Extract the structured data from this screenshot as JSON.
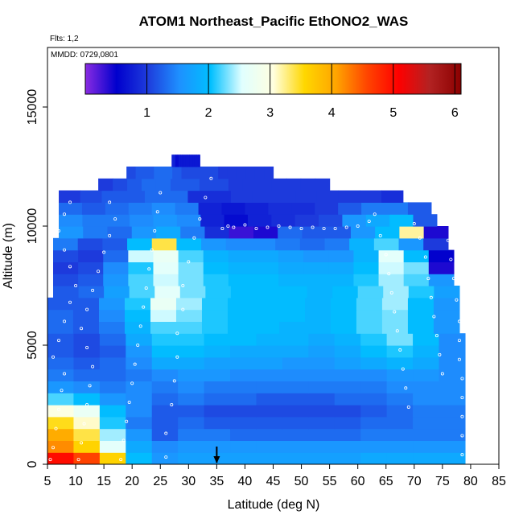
{
  "chart_data": {
    "type": "heatmap",
    "title": "ATOM1 Northeast_Pacific EthONO2_WAS",
    "flights_text": "Flts: 1,2",
    "mmdd_text": "MMDD: 0729,0801",
    "xlabel": "Latitude (deg N)",
    "ylabel": "Altitude (m)",
    "xlim": [
      5,
      85
    ],
    "ylim": [
      0,
      17500
    ],
    "x_ticks": [
      "5",
      "10",
      "15",
      "20",
      "25",
      "30",
      "35",
      "40",
      "45",
      "50",
      "55",
      "60",
      "65",
      "70",
      "75",
      "80",
      "85"
    ],
    "y_ticks": [
      "0",
      "5000",
      "10000",
      "15000"
    ],
    "colorbar": {
      "range": [
        0,
        6.1
      ],
      "tick_labels": [
        "1",
        "2",
        "3",
        "4",
        "5",
        "6"
      ],
      "colors": [
        "#8a2be2",
        "#0000cd",
        "#1e3cdc",
        "#1e90ff",
        "#00bfff",
        "#e0ffff",
        "#ffffe0",
        "#ffd700",
        "#ffa500",
        "#ff4500",
        "#ff0000",
        "#b22222",
        "#8b0000"
      ]
    },
    "arrow_marker": {
      "latitude": 35
    },
    "rows": [
      {
        "alt": 250,
        "x0": 5,
        "x1": 79,
        "values": [
          5.0,
          4.6,
          3.6,
          2.0,
          1.6,
          1.7,
          1.7,
          1.7,
          1.7,
          1.7,
          1.7,
          1.7,
          1.8,
          1.8,
          1.8,
          1.8
        ]
      },
      {
        "alt": 750,
        "x0": 5,
        "x1": 79,
        "values": [
          4.2,
          3.6,
          2.6,
          1.8,
          1.5,
          1.6,
          1.6,
          1.6,
          1.6,
          1.6,
          1.6,
          1.6,
          1.6,
          1.6,
          1.6,
          1.6
        ]
      },
      {
        "alt": 1250,
        "x0": 5,
        "x1": 79,
        "values": [
          4.0,
          3.4,
          2.4,
          1.6,
          1.2,
          1.4,
          1.4,
          1.3,
          1.3,
          1.3,
          1.3,
          1.3,
          1.4,
          1.4,
          1.4,
          1.4
        ]
      },
      {
        "alt": 1750,
        "x0": 5,
        "x1": 79,
        "values": [
          3.5,
          3.1,
          2.1,
          1.4,
          1.2,
          1.3,
          1.2,
          1.2,
          1.2,
          1.2,
          1.2,
          1.2,
          1.3,
          1.3,
          1.4,
          1.4
        ]
      },
      {
        "alt": 2250,
        "x0": 5,
        "x1": 79,
        "values": [
          3.0,
          2.7,
          2.0,
          1.5,
          1.2,
          1.2,
          1.1,
          1.1,
          1.1,
          1.1,
          1.1,
          1.1,
          1.2,
          1.3,
          1.4,
          1.4
        ]
      },
      {
        "alt": 2750,
        "x0": 5,
        "x1": 79,
        "values": [
          2.2,
          2.0,
          1.6,
          1.5,
          1.3,
          1.4,
          1.3,
          1.3,
          1.2,
          1.2,
          1.2,
          1.3,
          1.3,
          1.4,
          1.5,
          1.5
        ]
      },
      {
        "alt": 3250,
        "x0": 5,
        "x1": 79,
        "values": [
          1.6,
          1.5,
          1.4,
          1.5,
          1.4,
          1.5,
          1.4,
          1.4,
          1.4,
          1.4,
          1.4,
          1.4,
          1.4,
          1.5,
          1.5,
          1.5
        ]
      },
      {
        "alt": 3750,
        "x0": 5,
        "x1": 79,
        "values": [
          1.4,
          1.3,
          1.3,
          1.4,
          1.5,
          1.6,
          1.6,
          1.5,
          1.5,
          1.5,
          1.5,
          1.5,
          1.5,
          1.6,
          1.6,
          1.5
        ]
      },
      {
        "alt": 4250,
        "x0": 5,
        "x1": 79,
        "values": [
          1.3,
          1.2,
          1.3,
          1.5,
          1.8,
          1.8,
          1.7,
          1.7,
          1.7,
          1.6,
          1.6,
          1.7,
          1.8,
          1.9,
          1.8,
          1.5
        ]
      },
      {
        "alt": 4750,
        "x0": 5,
        "x1": 79,
        "values": [
          1.2,
          1.1,
          1.2,
          1.6,
          2.0,
          2.0,
          1.9,
          1.8,
          1.8,
          1.8,
          1.7,
          1.8,
          2.0,
          2.1,
          1.9,
          1.5
        ]
      },
      {
        "alt": 5250,
        "x0": 5,
        "x1": 79,
        "values": [
          1.2,
          1.1,
          1.3,
          1.8,
          2.1,
          2.1,
          2.0,
          2.0,
          1.9,
          1.9,
          1.8,
          1.9,
          2.1,
          2.3,
          2.0,
          1.5
        ]
      },
      {
        "alt": 5750,
        "x0": 5,
        "x1": 78,
        "values": [
          1.3,
          1.2,
          1.4,
          1.9,
          2.2,
          2.2,
          2.1,
          2.0,
          2.0,
          1.9,
          1.9,
          2.0,
          2.2,
          2.3,
          2.0,
          1.6
        ]
      },
      {
        "alt": 6250,
        "x0": 5,
        "x1": 78,
        "values": [
          1.3,
          1.2,
          1.5,
          2.0,
          2.5,
          2.3,
          2.1,
          2.0,
          2.0,
          2.0,
          1.9,
          2.0,
          2.2,
          2.3,
          2.0,
          1.6
        ]
      },
      {
        "alt": 6750,
        "x0": 5,
        "x1": 78,
        "values": [
          1.2,
          1.2,
          1.6,
          2.1,
          2.7,
          2.4,
          2.1,
          2.0,
          2.0,
          2.0,
          1.9,
          2.0,
          2.2,
          2.4,
          2.0,
          1.6
        ]
      },
      {
        "alt": 7250,
        "x0": 6,
        "x1": 78,
        "values": [
          1.2,
          1.3,
          1.7,
          2.2,
          2.6,
          2.3,
          2.1,
          2.0,
          2.0,
          2.0,
          1.9,
          2.0,
          2.2,
          2.4,
          2.1,
          1.7
        ]
      },
      {
        "alt": 7750,
        "x0": 6,
        "x1": 77,
        "values": [
          1.1,
          1.2,
          1.6,
          2.2,
          2.5,
          2.3,
          2.1,
          2.0,
          2.0,
          1.9,
          1.9,
          1.9,
          2.1,
          2.4,
          2.2,
          1.6
        ]
      },
      {
        "alt": 8250,
        "x0": 6,
        "x1": 77,
        "values": [
          1.0,
          1.1,
          1.5,
          2.1,
          2.6,
          2.3,
          2.0,
          1.9,
          1.9,
          1.8,
          1.8,
          1.8,
          2.0,
          2.5,
          2.3,
          0.4
        ]
      },
      {
        "alt": 8750,
        "x0": 6,
        "x1": 77,
        "values": [
          1.1,
          1.0,
          1.3,
          2.5,
          2.7,
          2.2,
          1.9,
          1.8,
          1.8,
          1.7,
          1.6,
          1.6,
          1.9,
          2.6,
          2.0,
          0.5
        ]
      },
      {
        "alt": 9250,
        "x0": 6,
        "x1": 76,
        "values": [
          1.4,
          1.1,
          1.2,
          2.0,
          3.4,
          2.0,
          1.6,
          1.5,
          1.5,
          1.4,
          1.3,
          1.4,
          1.9,
          2.2,
          1.6,
          1.0
        ]
      },
      {
        "alt": 9750,
        "x0": 7,
        "x1": 76,
        "values": [
          1.6,
          1.4,
          1.3,
          1.6,
          1.8,
          1.4,
          0.9,
          0.3,
          0.4,
          1.3,
          1.2,
          1.2,
          1.6,
          2.0,
          3.2,
          0.4
        ]
      },
      {
        "alt": 10250,
        "x0": 7,
        "x1": 74,
        "values": [
          1.5,
          1.4,
          1.4,
          1.5,
          1.6,
          1.5,
          0.8,
          0.6,
          0.8,
          0.9,
          1.0,
          1.1,
          1.6,
          1.8,
          2.0,
          1.2
        ]
      },
      {
        "alt": 10750,
        "x0": 7,
        "x1": 73,
        "values": [
          1.3,
          1.2,
          1.3,
          1.4,
          1.5,
          1.4,
          0.8,
          0.7,
          0.8,
          0.9,
          0.9,
          1.0,
          1.2,
          1.4,
          1.4,
          1.2
        ]
      },
      {
        "alt": 11250,
        "x0": 7,
        "x1": 68,
        "values": [
          1.0,
          1.1,
          1.2,
          1.2,
          1.3,
          1.3,
          0.9,
          0.9,
          1.0,
          1.0,
          1.0,
          1.0,
          1.0,
          1.0,
          1.0,
          0.9
        ]
      },
      {
        "alt": 11750,
        "x0": 14,
        "x1": 55,
        "values": [
          1.0,
          1.1,
          1.2,
          1.3,
          1.3,
          1.2,
          1.2,
          1.1,
          1.1,
          1.0,
          1.0,
          1.0,
          1.0,
          1.0,
          1.0,
          1.0
        ]
      },
      {
        "alt": 12250,
        "x0": 19,
        "x1": 45,
        "values": [
          1.1,
          1.2,
          1.2,
          1.3,
          1.3,
          1.2,
          1.1,
          1.1,
          1.1,
          1.1,
          1.0,
          1.0,
          1.0,
          1.0,
          1.0,
          1.0
        ]
      },
      {
        "alt": 12750,
        "x0": 27,
        "x1": 32,
        "values": [
          0.8,
          0.8,
          0.6,
          0.6,
          0.7,
          0.7,
          0.7,
          0.7,
          0.7,
          0.7,
          0.7,
          0.7,
          0.7,
          0.7,
          0.7,
          0.7
        ]
      }
    ],
    "sample_points": [
      [
        5.5,
        200
      ],
      [
        6,
        700
      ],
      [
        6.5,
        1500
      ],
      [
        7,
        2300
      ],
      [
        7.5,
        3100
      ],
      [
        8,
        3800
      ],
      [
        6,
        4500
      ],
      [
        7,
        5200
      ],
      [
        8,
        6000
      ],
      [
        9,
        6800
      ],
      [
        10,
        7500
      ],
      [
        9,
        8300
      ],
      [
        8,
        9000
      ],
      [
        7,
        9800
      ],
      [
        8,
        10500
      ],
      [
        9,
        11000
      ],
      [
        10.5,
        200
      ],
      [
        11,
        900
      ],
      [
        11.5,
        1700
      ],
      [
        12,
        2500
      ],
      [
        12.5,
        3300
      ],
      [
        13,
        4100
      ],
      [
        12,
        4900
      ],
      [
        11,
        5700
      ],
      [
        12,
        6500
      ],
      [
        13,
        7300
      ],
      [
        14,
        8100
      ],
      [
        15,
        8900
      ],
      [
        16,
        9600
      ],
      [
        17,
        10300
      ],
      [
        16,
        11000
      ],
      [
        18,
        200
      ],
      [
        18.5,
        1000
      ],
      [
        19,
        1800
      ],
      [
        19.5,
        2600
      ],
      [
        20,
        3400
      ],
      [
        20.5,
        4200
      ],
      [
        21,
        5000
      ],
      [
        21.5,
        5800
      ],
      [
        22,
        6600
      ],
      [
        22.5,
        7400
      ],
      [
        23,
        8200
      ],
      [
        23.5,
        9000
      ],
      [
        24,
        9800
      ],
      [
        24.5,
        10600
      ],
      [
        25,
        11400
      ],
      [
        26,
        300
      ],
      [
        26,
        1300
      ],
      [
        27,
        2500
      ],
      [
        27.5,
        3500
      ],
      [
        28,
        4500
      ],
      [
        28,
        5500
      ],
      [
        29,
        6500
      ],
      [
        29,
        7500
      ],
      [
        30,
        8500
      ],
      [
        31,
        9500
      ],
      [
        32,
        10300
      ],
      [
        33,
        11200
      ],
      [
        34,
        12000
      ],
      [
        36,
        9900
      ],
      [
        37,
        10000
      ],
      [
        38,
        9950
      ],
      [
        40,
        10050
      ],
      [
        42,
        9900
      ],
      [
        44,
        9950
      ],
      [
        46,
        10000
      ],
      [
        48,
        9950
      ],
      [
        50,
        9900
      ],
      [
        52,
        9950
      ],
      [
        54,
        9900
      ],
      [
        56,
        9900
      ],
      [
        58,
        9950
      ],
      [
        60,
        10000
      ],
      [
        62,
        10200
      ],
      [
        63,
        10500
      ],
      [
        64,
        9600
      ],
      [
        65,
        8800
      ],
      [
        65.5,
        8000
      ],
      [
        66,
        7200
      ],
      [
        66.5,
        6400
      ],
      [
        67,
        5600
      ],
      [
        67.5,
        4800
      ],
      [
        68,
        4000
      ],
      [
        68.5,
        3200
      ],
      [
        69,
        2400
      ],
      [
        70,
        10100
      ],
      [
        71,
        9500
      ],
      [
        72,
        8700
      ],
      [
        72.5,
        7800
      ],
      [
        73,
        7000
      ],
      [
        73.5,
        6200
      ],
      [
        74,
        5400
      ],
      [
        74.5,
        4600
      ],
      [
        75,
        3800
      ],
      [
        76,
        9400
      ],
      [
        76.5,
        8600
      ],
      [
        77,
        7800
      ],
      [
        77.5,
        6900
      ],
      [
        78,
        6000
      ],
      [
        78,
        5200
      ],
      [
        78,
        4400
      ],
      [
        78.5,
        3600
      ],
      [
        78.5,
        2800
      ],
      [
        78.5,
        2000
      ],
      [
        78.5,
        1200
      ],
      [
        78.5,
        400
      ]
    ]
  }
}
